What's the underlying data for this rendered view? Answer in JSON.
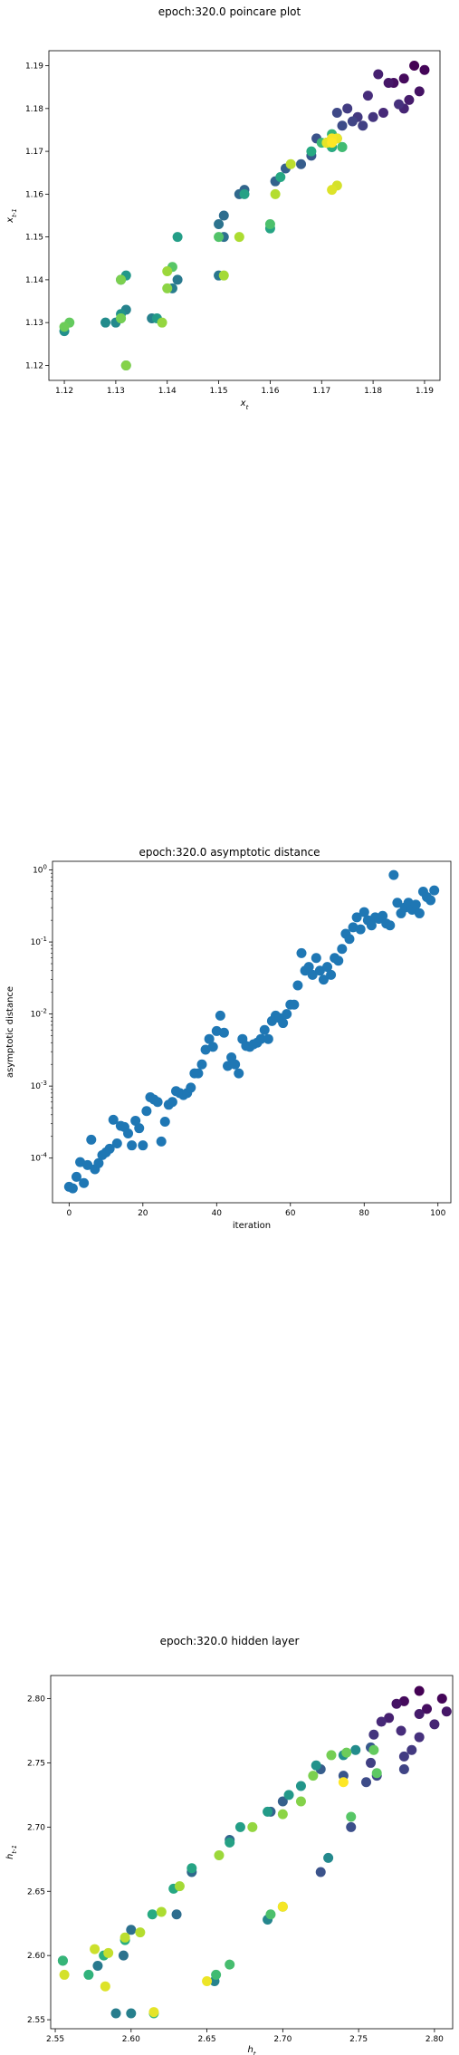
{
  "colors": {
    "viridis": [
      "#440154",
      "#472d7b",
      "#3b528b",
      "#2c728e",
      "#21918c",
      "#28ae80",
      "#5ec962",
      "#addc30",
      "#fde725"
    ],
    "scatter_blue": "#1f77b4"
  },
  "chart_data": [
    {
      "type": "scatter",
      "title": "epoch:320.0 poincare plot",
      "xlabel": "x_t",
      "ylabel": "x_t-1",
      "xlim": [
        1.117,
        1.193
      ],
      "ylim": [
        1.1165,
        1.1935
      ],
      "xticks": [
        "1.12",
        "1.13",
        "1.14",
        "1.15",
        "1.16",
        "1.17",
        "1.18",
        "1.19"
      ],
      "yticks": [
        "1.12",
        "1.13",
        "1.14",
        "1.15",
        "1.16",
        "1.17",
        "1.18",
        "1.19"
      ],
      "color_scale": "viridis (point order: dark purple → yellow)",
      "points": [
        [
          1.188,
          1.19
        ],
        [
          1.19,
          1.189
        ],
        [
          1.186,
          1.187
        ],
        [
          1.184,
          1.186
        ],
        [
          1.189,
          1.184
        ],
        [
          1.183,
          1.186
        ],
        [
          1.187,
          1.182
        ],
        [
          1.181,
          1.188
        ],
        [
          1.186,
          1.18
        ],
        [
          1.182,
          1.179
        ],
        [
          1.179,
          1.183
        ],
        [
          1.185,
          1.181
        ],
        [
          1.18,
          1.178
        ],
        [
          1.177,
          1.178
        ],
        [
          1.175,
          1.18
        ],
        [
          1.178,
          1.176
        ],
        [
          1.176,
          1.177
        ],
        [
          1.173,
          1.179
        ],
        [
          1.174,
          1.176
        ],
        [
          1.171,
          1.172
        ],
        [
          1.169,
          1.173
        ],
        [
          1.172,
          1.171
        ],
        [
          1.168,
          1.169
        ],
        [
          1.166,
          1.167
        ],
        [
          1.163,
          1.166
        ],
        [
          1.161,
          1.163
        ],
        [
          1.155,
          1.161
        ],
        [
          1.154,
          1.16
        ],
        [
          1.151,
          1.155
        ],
        [
          1.151,
          1.15
        ],
        [
          1.15,
          1.153
        ],
        [
          1.15,
          1.141
        ],
        [
          1.142,
          1.14
        ],
        [
          1.141,
          1.138
        ],
        [
          1.137,
          1.131
        ],
        [
          1.132,
          1.133
        ],
        [
          1.131,
          1.14
        ],
        [
          1.13,
          1.13
        ],
        [
          1.128,
          1.13
        ],
        [
          1.12,
          1.128
        ],
        [
          1.131,
          1.132
        ],
        [
          1.132,
          1.12
        ],
        [
          1.132,
          1.141
        ],
        [
          1.138,
          1.131
        ],
        [
          1.142,
          1.15
        ],
        [
          1.155,
          1.16
        ],
        [
          1.16,
          1.152
        ],
        [
          1.162,
          1.164
        ],
        [
          1.168,
          1.17
        ],
        [
          1.172,
          1.171
        ],
        [
          1.174,
          1.171
        ],
        [
          1.173,
          1.173
        ],
        [
          1.172,
          1.174
        ],
        [
          1.17,
          1.172
        ],
        [
          1.174,
          1.171
        ],
        [
          1.171,
          1.172
        ],
        [
          1.16,
          1.153
        ],
        [
          1.15,
          1.15
        ],
        [
          1.141,
          1.143
        ],
        [
          1.131,
          1.131
        ],
        [
          1.121,
          1.13
        ],
        [
          1.12,
          1.129
        ],
        [
          1.131,
          1.131
        ],
        [
          1.131,
          1.14
        ],
        [
          1.132,
          1.12
        ],
        [
          1.14,
          1.138
        ],
        [
          1.139,
          1.13
        ],
        [
          1.14,
          1.142
        ],
        [
          1.151,
          1.141
        ],
        [
          1.154,
          1.15
        ],
        [
          1.161,
          1.16
        ],
        [
          1.164,
          1.167
        ],
        [
          1.172,
          1.173
        ],
        [
          1.171,
          1.172
        ],
        [
          1.173,
          1.162
        ],
        [
          1.172,
          1.161
        ],
        [
          1.171,
          1.172
        ],
        [
          1.173,
          1.173
        ],
        [
          1.172,
          1.173
        ],
        [
          1.172,
          1.172
        ]
      ]
    },
    {
      "type": "scatter",
      "title": "epoch:320.0 asymptotic distance",
      "xlabel": "iteration",
      "ylabel": "asymptotic distance",
      "xlim": [
        -4.5,
        103.5
      ],
      "ylim_log10": [
        -4.62,
        0.12
      ],
      "yscale": "log",
      "xticks": [
        "0",
        "20",
        "40",
        "60",
        "80",
        "100"
      ],
      "yticks": [
        "10^-4",
        "10^-3",
        "10^-2",
        "10^-1",
        "10^0"
      ],
      "series": [
        {
          "x": [
            0,
            1,
            2,
            3,
            4,
            5,
            6,
            7,
            8,
            9,
            10,
            11,
            12,
            13,
            14,
            15,
            16,
            17,
            18,
            19,
            20,
            21,
            22,
            23,
            24,
            25,
            26,
            27,
            28,
            29,
            30,
            31,
            32,
            33,
            34,
            35,
            36,
            37,
            38,
            39,
            40,
            41,
            42,
            43,
            44,
            45,
            46,
            47,
            48,
            49,
            50,
            51,
            52,
            53,
            54,
            55,
            56,
            57,
            58,
            59,
            60,
            61,
            62,
            63,
            64,
            65,
            66,
            67,
            68,
            69,
            70,
            71,
            72,
            73,
            74,
            75,
            76,
            77,
            78,
            79,
            80,
            81,
            82,
            83,
            84,
            85,
            86,
            87,
            88,
            89,
            90,
            91,
            92,
            93,
            94,
            95,
            96,
            97,
            98,
            99
          ],
          "y": [
            4e-05,
            3.8e-05,
            5.5e-05,
            8.8e-05,
            4.5e-05,
            8e-05,
            0.00018,
            7e-05,
            8.5e-05,
            0.00011,
            0.00012,
            0.000135,
            0.00034,
            0.00016,
            0.00028,
            0.00027,
            0.00022,
            0.00015,
            0.00033,
            0.00026,
            0.00015,
            0.00045,
            0.0007,
            0.00065,
            0.0006,
            0.00017,
            0.00032,
            0.00055,
            0.0006,
            0.00085,
            0.0008,
            0.00075,
            0.0008,
            0.00095,
            0.0015,
            0.0015,
            0.002,
            0.0032,
            0.0045,
            0.0035,
            0.0058,
            0.0095,
            0.0055,
            0.0019,
            0.0025,
            0.002,
            0.0015,
            0.0045,
            0.0036,
            0.0035,
            0.0038,
            0.004,
            0.0045,
            0.006,
            0.0045,
            0.008,
            0.0095,
            0.0088,
            0.0075,
            0.01,
            0.0135,
            0.0135,
            0.025,
            0.07,
            0.04,
            0.045,
            0.035,
            0.06,
            0.04,
            0.03,
            0.045,
            0.035,
            0.06,
            0.055,
            0.08,
            0.13,
            0.11,
            0.16,
            0.22,
            0.15,
            0.26,
            0.2,
            0.17,
            0.22,
            0.21,
            0.23,
            0.18,
            0.17,
            0.85,
            0.35,
            0.25,
            0.3,
            0.35,
            0.28,
            0.33,
            0.25,
            0.5,
            0.42,
            0.38,
            0.52
          ]
        }
      ]
    },
    {
      "type": "scatter",
      "title": "epoch:320.0 hidden layer",
      "xlabel": "h_t",
      "ylabel": "h_t-1",
      "xlim": [
        2.547,
        2.812
      ],
      "ylim": [
        2.543,
        2.818
      ],
      "xticks": [
        "2.55",
        "2.60",
        "2.65",
        "2.70",
        "2.75",
        "2.80"
      ],
      "yticks": [
        "2.55",
        "2.60",
        "2.65",
        "2.70",
        "2.75",
        "2.80"
      ],
      "color_scale": "viridis (point order: dark purple → yellow)",
      "points": [
        [
          2.79,
          2.806
        ],
        [
          2.805,
          2.8
        ],
        [
          2.78,
          2.798
        ],
        [
          2.795,
          2.792
        ],
        [
          2.775,
          2.796
        ],
        [
          2.808,
          2.79
        ],
        [
          2.79,
          2.788
        ],
        [
          2.77,
          2.785
        ],
        [
          2.8,
          2.78
        ],
        [
          2.765,
          2.782
        ],
        [
          2.778,
          2.775
        ],
        [
          2.79,
          2.77
        ],
        [
          2.76,
          2.772
        ],
        [
          2.785,
          2.76
        ],
        [
          2.78,
          2.755
        ],
        [
          2.758,
          2.75
        ],
        [
          2.78,
          2.745
        ],
        [
          2.762,
          2.74
        ],
        [
          2.755,
          2.735
        ],
        [
          2.745,
          2.7
        ],
        [
          2.725,
          2.665
        ],
        [
          2.74,
          2.74
        ],
        [
          2.758,
          2.762
        ],
        [
          2.725,
          2.745
        ],
        [
          2.7,
          2.72
        ],
        [
          2.692,
          2.712
        ],
        [
          2.665,
          2.69
        ],
        [
          2.64,
          2.665
        ],
        [
          2.63,
          2.632
        ],
        [
          2.6,
          2.62
        ],
        [
          2.595,
          2.6
        ],
        [
          2.555,
          2.596
        ],
        [
          2.578,
          2.592
        ],
        [
          2.59,
          2.555
        ],
        [
          2.6,
          2.555
        ],
        [
          2.655,
          2.58
        ],
        [
          2.69,
          2.628
        ],
        [
          2.73,
          2.676
        ],
        [
          2.748,
          2.76
        ],
        [
          2.74,
          2.756
        ],
        [
          2.722,
          2.748
        ],
        [
          2.712,
          2.732
        ],
        [
          2.704,
          2.725
        ],
        [
          2.69,
          2.712
        ],
        [
          2.672,
          2.7
        ],
        [
          2.665,
          2.688
        ],
        [
          2.64,
          2.668
        ],
        [
          2.628,
          2.652
        ],
        [
          2.614,
          2.632
        ],
        [
          2.596,
          2.612
        ],
        [
          2.582,
          2.6
        ],
        [
          2.572,
          2.585
        ],
        [
          2.555,
          2.596
        ],
        [
          2.615,
          2.555
        ],
        [
          2.656,
          2.585
        ],
        [
          2.665,
          2.593
        ],
        [
          2.692,
          2.632
        ],
        [
          2.7,
          2.638
        ],
        [
          2.745,
          2.708
        ],
        [
          2.762,
          2.742
        ],
        [
          2.76,
          2.76
        ],
        [
          2.742,
          2.758
        ],
        [
          2.732,
          2.756
        ],
        [
          2.72,
          2.74
        ],
        [
          2.712,
          2.72
        ],
        [
          2.7,
          2.71
        ],
        [
          2.68,
          2.7
        ],
        [
          2.658,
          2.678
        ],
        [
          2.632,
          2.654
        ],
        [
          2.62,
          2.634
        ],
        [
          2.606,
          2.618
        ],
        [
          2.596,
          2.614
        ],
        [
          2.585,
          2.602
        ],
        [
          2.576,
          2.605
        ],
        [
          2.556,
          2.585
        ],
        [
          2.583,
          2.576
        ],
        [
          2.615,
          2.556
        ],
        [
          2.65,
          2.58
        ],
        [
          2.7,
          2.638
        ],
        [
          2.74,
          2.735
        ]
      ]
    }
  ]
}
